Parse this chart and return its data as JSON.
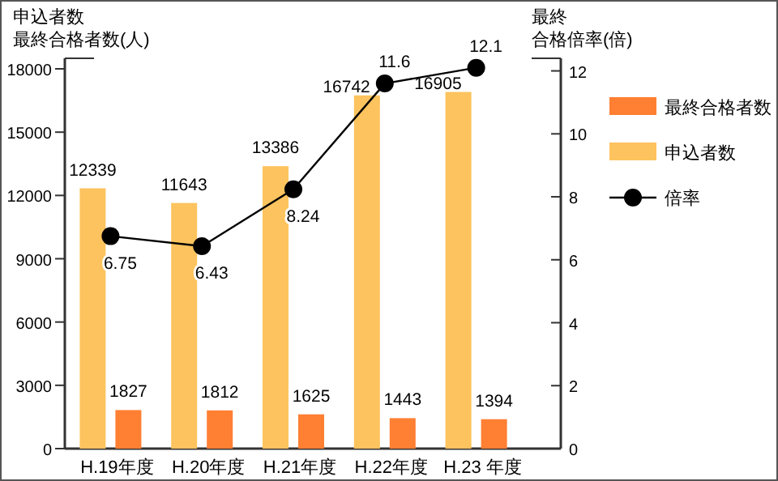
{
  "chart_data": {
    "type": "bar",
    "ylabel": "申込者数最終合格者数(人)",
    "y2label": "最終合格倍率(倍)",
    "categories": [
      "H.19年度",
      "H.20年度",
      "H.21年度",
      "H.22年度",
      "H.23 年度"
    ],
    "series": [
      {
        "name": "申込者数",
        "color": "#fdc35e",
        "values": [
          12339,
          11643,
          13386,
          16742,
          16905
        ]
      },
      {
        "name": "最終合格者数",
        "color": "#ff7f33",
        "values": [
          1827,
          1812,
          1625,
          1443,
          1394
        ]
      },
      {
        "name": "倍率",
        "type": "line",
        "axis": "y2",
        "color": "#000000",
        "marker": "circle",
        "values": [
          6.75,
          6.43,
          8.24,
          11.6,
          12.1
        ]
      }
    ],
    "ylim": [
      0,
      18500
    ],
    "yticks": [
      0,
      3000,
      6000,
      9000,
      12000,
      15000,
      18000
    ],
    "y2lim": [
      0,
      12.4
    ],
    "y2ticks": [
      0,
      2,
      4,
      6,
      8,
      10,
      12
    ],
    "data_labels": true,
    "grid": false,
    "legend": "right"
  }
}
